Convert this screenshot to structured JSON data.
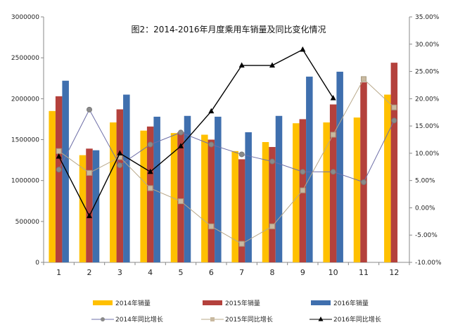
{
  "chart_data": {
    "type": "bar",
    "title": "图2：2014-2016年月度乘用车销量及同比变化情况",
    "categories": [
      "1",
      "2",
      "3",
      "4",
      "5",
      "6",
      "7",
      "8",
      "9",
      "10",
      "11",
      "12"
    ],
    "y_left": {
      "lim": [
        0,
        3000000
      ],
      "ticks": [
        0,
        500000,
        1000000,
        1500000,
        2000000,
        2500000,
        3000000
      ],
      "tick_labels": [
        "0",
        "500000",
        "1000000",
        "1500000",
        "2000000",
        "2500000",
        "3000000"
      ]
    },
    "y_right": {
      "lim": [
        -10,
        35
      ],
      "ticks": [
        -10,
        -5,
        0,
        5,
        10,
        15,
        20,
        25,
        30,
        35
      ],
      "tick_labels": [
        "-10.00%",
        "-5.00%",
        "0.00%",
        "5.00%",
        "10.00%",
        "15.00%",
        "20.00%",
        "25.00%",
        "30.00%",
        "35.00%"
      ]
    },
    "series": [
      {
        "name": "2014年销量",
        "kind": "bar",
        "color": "#FFC000",
        "values": [
          1850000,
          1310000,
          1710000,
          1610000,
          1580000,
          1560000,
          1360000,
          1470000,
          1700000,
          1710000,
          1770000,
          2050000
        ]
      },
      {
        "name": "2015年销量",
        "kind": "bar",
        "color": "#B4413C",
        "values": [
          2030000,
          1390000,
          1870000,
          1660000,
          1590000,
          1500000,
          1260000,
          1410000,
          1750000,
          1930000,
          2200000,
          2440000
        ]
      },
      {
        "name": "2016年销量",
        "kind": "bar",
        "color": "#3F6FAE",
        "values": [
          2220000,
          1370000,
          2050000,
          1780000,
          1790000,
          1780000,
          1590000,
          1790000,
          2270000,
          2330000,
          null,
          null
        ]
      },
      {
        "name": "2014年同比增长",
        "kind": "line",
        "axis": "right",
        "color": "#6E6FA8",
        "marker": "circle",
        "values": [
          7.0,
          18.0,
          7.8,
          11.6,
          13.8,
          11.6,
          9.8,
          8.5,
          6.6,
          6.6,
          4.7,
          16.0
        ]
      },
      {
        "name": "2015年同比增长",
        "kind": "line",
        "axis": "right",
        "color": "#B8A88A",
        "marker": "square",
        "values": [
          10.4,
          6.4,
          9.3,
          3.6,
          1.2,
          -3.4,
          -6.6,
          -3.4,
          3.2,
          13.4,
          23.6,
          18.4
        ]
      },
      {
        "name": "2016年同比增长",
        "kind": "line",
        "axis": "right",
        "color": "#000000",
        "marker": "triangle",
        "values": [
          9.4,
          -1.5,
          10.0,
          6.6,
          11.3,
          17.7,
          26.1,
          26.1,
          29.0,
          20.1,
          null,
          null
        ]
      }
    ],
    "legend_position": "bottom"
  }
}
